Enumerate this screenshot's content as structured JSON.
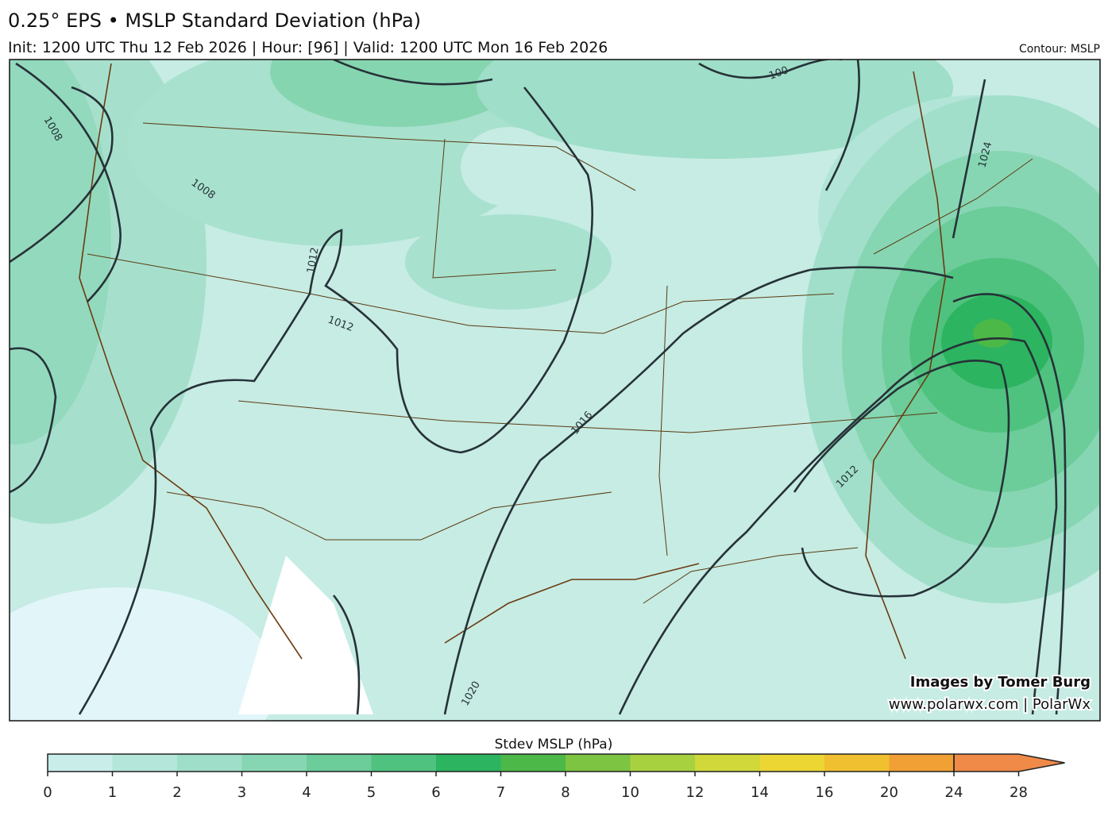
{
  "header": {
    "title": "0.25° EPS • MSLP Standard Deviation (hPa)",
    "subtitle": "Init: 1200 UTC Thu 12 Feb 2026 | Hour: [96] | Valid: 1200 UTC Mon 16 Feb 2026",
    "contour_note": "Contour: MSLP"
  },
  "map": {
    "contour_labels": [
      "1008",
      "1008",
      "1012",
      "1012",
      "1016",
      "1012",
      "1024",
      "1020",
      "100"
    ],
    "credits": [
      "Images by Tomer Burg",
      "www.polarwx.com | PolarWx"
    ]
  },
  "colorbar": {
    "title": "Stdev MSLP (hPa)",
    "ticks": [
      0,
      1,
      2,
      3,
      4,
      5,
      6,
      7,
      8,
      10,
      12,
      14,
      16,
      20,
      24,
      28
    ],
    "colors": [
      "#c9eeea",
      "#b4e6da",
      "#9fdec8",
      "#87d6b3",
      "#6ccc9a",
      "#50c27f",
      "#2db460",
      "#4cb848",
      "#7cc442",
      "#a8d140",
      "#d0d83a",
      "#ecd634",
      "#f0c030",
      "#f0a035",
      "#ef8a48"
    ]
  }
}
